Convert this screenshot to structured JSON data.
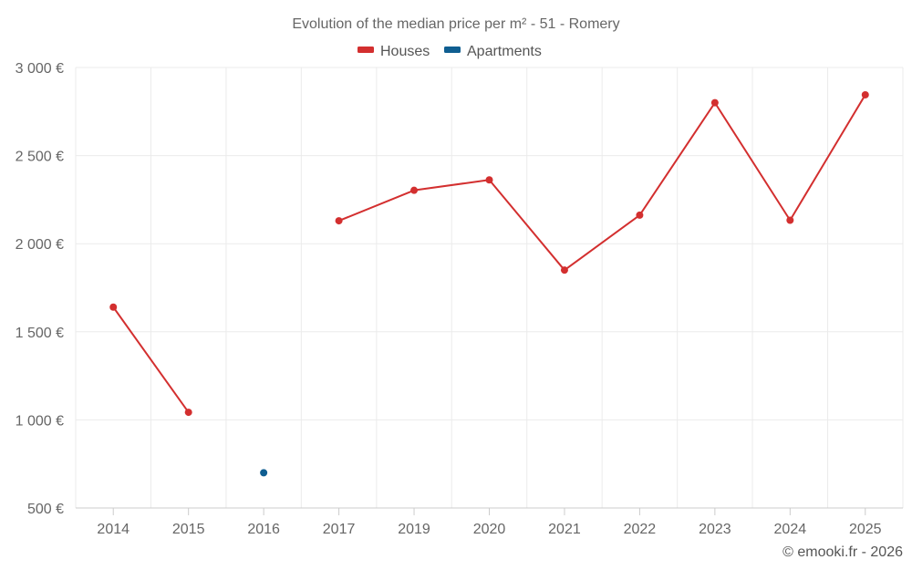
{
  "chart_data": {
    "type": "line",
    "title": "Evolution of the median price per m² - 51 - Romery",
    "categories": [
      "2014",
      "2015",
      "2016",
      "2017",
      "2019",
      "2020",
      "2021",
      "2022",
      "2023",
      "2024",
      "2025"
    ],
    "series": [
      {
        "name": "Houses",
        "color": "#d32f2f",
        "values": [
          1640,
          1043,
          null,
          2130,
          2303,
          2362,
          1850,
          2162,
          2800,
          2133,
          2845
        ]
      },
      {
        "name": "Apartments",
        "color": "#0f5e91",
        "values": [
          null,
          null,
          700,
          null,
          null,
          null,
          null,
          null,
          null,
          null,
          null
        ]
      }
    ],
    "yticks": [
      500,
      1000,
      1500,
      2000,
      2500,
      3000
    ],
    "ytick_labels": [
      "500 €",
      "1 000 €",
      "1 500 €",
      "2 000 €",
      "2 500 €",
      "3 000 €"
    ],
    "ylim": [
      500,
      3000
    ],
    "grid": true,
    "legend_position": "top-center",
    "xlabel": "",
    "ylabel": ""
  },
  "credit": "© emooki.fr - 2026"
}
